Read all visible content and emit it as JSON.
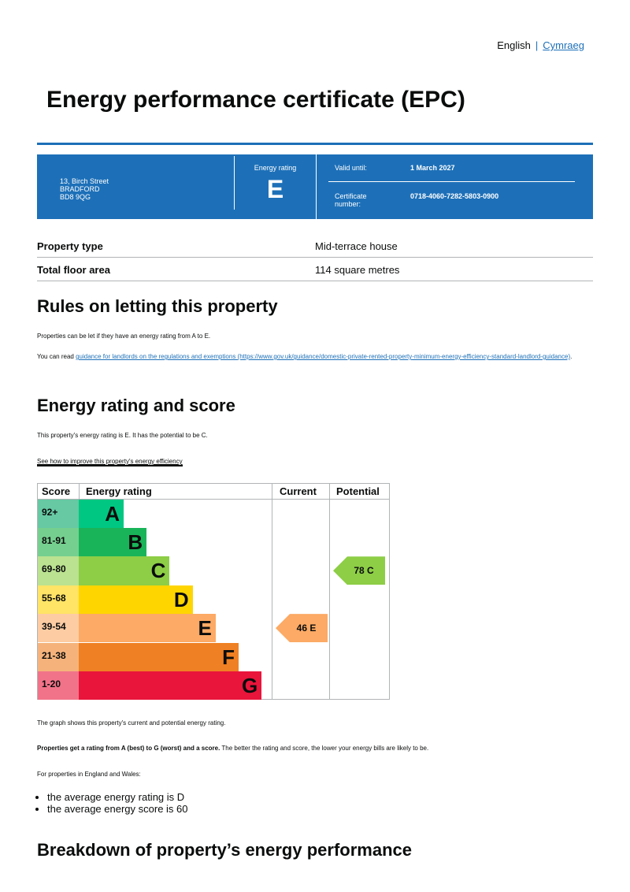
{
  "language": {
    "current": "English",
    "other": "Cymraeg"
  },
  "title": "Energy performance certificate (EPC)",
  "banner": {
    "address": [
      "13, Birch Street",
      "BRADFORD",
      "BD8 9QG"
    ],
    "energy_rating_label": "Energy rating",
    "energy_rating": "E",
    "valid_until_label": "Valid until:",
    "valid_until": "1 March 2027",
    "certificate_label": "Certificate number:",
    "certificate_number": "0718-4060-7282-5803-0900"
  },
  "property": [
    {
      "label": "Property type",
      "value": "Mid-terrace house"
    },
    {
      "label": "Total floor area",
      "value": "114 square metres"
    }
  ],
  "letting": {
    "heading": "Rules on letting this property",
    "p1": "Properties can be let if they have an energy rating from A to E.",
    "p2_prefix": "You can read ",
    "p2_link": "guidance for landlords on the regulations and exemptions (https://www.gov.uk/guidance/domestic-private-rented-property-minimum-energy-efficiency-standard-landlord-guidance)",
    "p2_suffix": "."
  },
  "rating": {
    "heading": "Energy rating and score",
    "p1": "This property's energy rating is E. It has the potential to be C.",
    "link": "See how to improve this property's energy efficiency"
  },
  "chart_data": {
    "type": "table",
    "headers": [
      "Score",
      "Energy rating",
      "Current",
      "Potential"
    ],
    "bands": [
      {
        "score": "92+",
        "letter": "A",
        "color": "#00c781",
        "tint": "#66c9a4"
      },
      {
        "score": "81-91",
        "letter": "B",
        "color": "#19b459",
        "tint": "#75cf8f"
      },
      {
        "score": "69-80",
        "letter": "C",
        "color": "#8dce46",
        "tint": "#bae290"
      },
      {
        "score": "55-68",
        "letter": "D",
        "color": "#ffd500",
        "tint": "#ffe466"
      },
      {
        "score": "39-54",
        "letter": "E",
        "color": "#fcaa65",
        "tint": "#fdcca3"
      },
      {
        "score": "21-38",
        "letter": "F",
        "color": "#ef8023",
        "tint": "#f5b37b"
      },
      {
        "score": "1-20",
        "letter": "G",
        "color": "#e9153b",
        "tint": "#f17389"
      }
    ],
    "current": {
      "score": 46,
      "letter": "E",
      "label": "46  E"
    },
    "potential": {
      "score": 78,
      "letter": "C",
      "label": "78  C"
    }
  },
  "after": {
    "p1": "The graph shows this property's current and potential energy rating.",
    "p2_bold": "Properties get a rating from A (best) to G (worst) and a score.",
    "p2_rest": " The better the rating and score, the lower your energy bills are likely to be.",
    "p3": "For properties in England and Wales:",
    "bullets": [
      "the average energy rating is D",
      "the average energy score is 60"
    ]
  },
  "breakdown": {
    "heading": "Breakdown of property’s energy performance"
  }
}
